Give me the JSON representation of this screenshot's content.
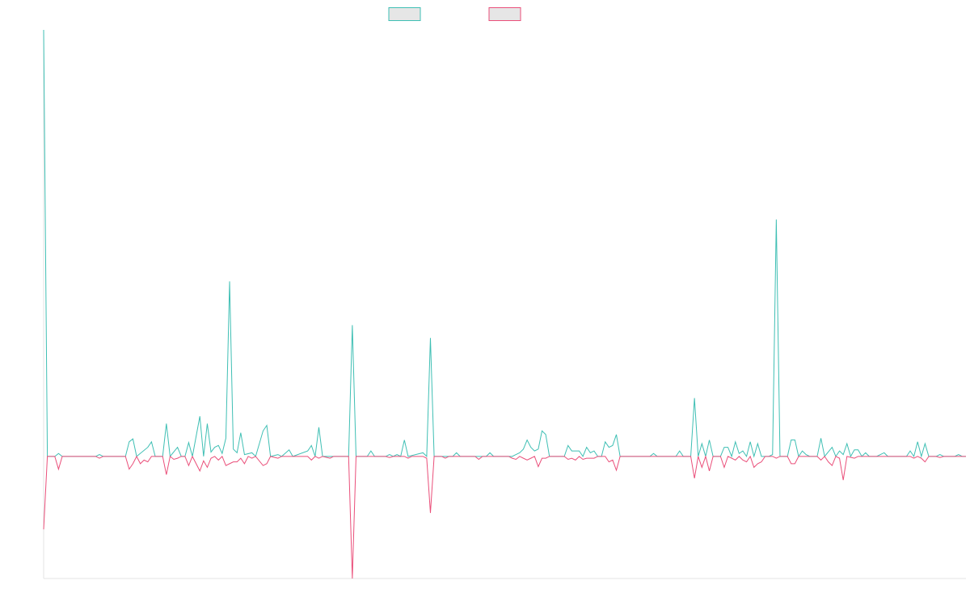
{
  "chart_data": {
    "type": "line",
    "title": "",
    "xlabel": "",
    "ylabel": "",
    "grid": false,
    "legend": {
      "placement": "top-center",
      "entries": [
        {
          "label": "",
          "color": "#3fbfb4",
          "fill": "#e6e6e6"
        },
        {
          "label": "",
          "color": "#ea4f7a",
          "fill": "#e6e6e6"
        }
      ]
    },
    "ylim": [
      -33.5,
      117
    ],
    "xlim": [
      0,
      248
    ],
    "series": [
      {
        "name": "",
        "color": "#3fbfb4",
        "points": [
          [
            0,
            117
          ],
          [
            1,
            0
          ],
          [
            3,
            0
          ],
          [
            4,
            0.8
          ],
          [
            5,
            0
          ],
          [
            14,
            0
          ],
          [
            15,
            0.5
          ],
          [
            16,
            0
          ],
          [
            22,
            0
          ],
          [
            23,
            4
          ],
          [
            24,
            4.8
          ],
          [
            25,
            0
          ],
          [
            28,
            2.5
          ],
          [
            29,
            4
          ],
          [
            30,
            0
          ],
          [
            32,
            0
          ],
          [
            33,
            9
          ],
          [
            34,
            0
          ],
          [
            36,
            2.5
          ],
          [
            37,
            0
          ],
          [
            38,
            0
          ],
          [
            39,
            3.8
          ],
          [
            40,
            0
          ],
          [
            42,
            11
          ],
          [
            43,
            0
          ],
          [
            44,
            9
          ],
          [
            45,
            1.2
          ],
          [
            46,
            2.5
          ],
          [
            47,
            3
          ],
          [
            48,
            0.8
          ],
          [
            49,
            5
          ],
          [
            50,
            48
          ],
          [
            51,
            2
          ],
          [
            52,
            1
          ],
          [
            53,
            6.5
          ],
          [
            54,
            0.5
          ],
          [
            56,
            1
          ],
          [
            57,
            0
          ],
          [
            59,
            7
          ],
          [
            60,
            8.5
          ],
          [
            61,
            0
          ],
          [
            63,
            0.5
          ],
          [
            64,
            0
          ],
          [
            66,
            1.8
          ],
          [
            67,
            0
          ],
          [
            71,
            1.5
          ],
          [
            72,
            3
          ],
          [
            73,
            0
          ],
          [
            74,
            8
          ],
          [
            75,
            0
          ],
          [
            82,
            0
          ],
          [
            83,
            36
          ],
          [
            84,
            0
          ],
          [
            87,
            0
          ],
          [
            88,
            1.5
          ],
          [
            89,
            0
          ],
          [
            92,
            0
          ],
          [
            93,
            0.5
          ],
          [
            94,
            0
          ],
          [
            95,
            0.5
          ],
          [
            96,
            0
          ],
          [
            97,
            4.5
          ],
          [
            98,
            0
          ],
          [
            102,
            1
          ],
          [
            103,
            0
          ],
          [
            104,
            32.5
          ],
          [
            105,
            0
          ],
          [
            110,
            0
          ],
          [
            111,
            1
          ],
          [
            112,
            0
          ],
          [
            119,
            0
          ],
          [
            120,
            1
          ],
          [
            121,
            0
          ],
          [
            126,
            0
          ],
          [
            127,
            0.5
          ],
          [
            128,
            1
          ],
          [
            129,
            2
          ],
          [
            130,
            4.5
          ],
          [
            131,
            2.5
          ],
          [
            132,
            1.5
          ],
          [
            133,
            2
          ],
          [
            134,
            7
          ],
          [
            135,
            6
          ],
          [
            136,
            0
          ],
          [
            140,
            0
          ],
          [
            141,
            3
          ],
          [
            142,
            1.5
          ],
          [
            143,
            1.5
          ],
          [
            144,
            1.5
          ],
          [
            145,
            0
          ],
          [
            146,
            2.5
          ],
          [
            147,
            1
          ],
          [
            148,
            1.5
          ],
          [
            149,
            0
          ],
          [
            150,
            0
          ],
          [
            151,
            4
          ],
          [
            152,
            2.5
          ],
          [
            153,
            3
          ],
          [
            154,
            6
          ],
          [
            155,
            0
          ],
          [
            163,
            0
          ],
          [
            164,
            0.8
          ],
          [
            165,
            0
          ],
          [
            170,
            0
          ],
          [
            171,
            1.5
          ],
          [
            172,
            0
          ],
          [
            174,
            0
          ],
          [
            175,
            16
          ],
          [
            176,
            0
          ],
          [
            177,
            3.5
          ],
          [
            178,
            0
          ],
          [
            179,
            4.5
          ],
          [
            180,
            0
          ],
          [
            182,
            0
          ],
          [
            183,
            2.5
          ],
          [
            184,
            2.5
          ],
          [
            185,
            0
          ],
          [
            186,
            4
          ],
          [
            187,
            0.8
          ],
          [
            188,
            1.5
          ],
          [
            189,
            0
          ],
          [
            190,
            4
          ],
          [
            191,
            0
          ],
          [
            192,
            3.5
          ],
          [
            193,
            0
          ],
          [
            195,
            0
          ],
          [
            196,
            0.5
          ],
          [
            197,
            65
          ],
          [
            198,
            0
          ],
          [
            200,
            0
          ],
          [
            201,
            4.5
          ],
          [
            202,
            4.5
          ],
          [
            203,
            0
          ],
          [
            204,
            1.5
          ],
          [
            205,
            0.5
          ],
          [
            206,
            0
          ],
          [
            208,
            0
          ],
          [
            209,
            5
          ],
          [
            210,
            0
          ],
          [
            212,
            2.5
          ],
          [
            213,
            0
          ],
          [
            214,
            1.5
          ],
          [
            215,
            0.5
          ],
          [
            216,
            3.5
          ],
          [
            217,
            0
          ],
          [
            218,
            1.8
          ],
          [
            219,
            1.8
          ],
          [
            220,
            0
          ],
          [
            221,
            1
          ],
          [
            222,
            0
          ],
          [
            224,
            0
          ],
          [
            225,
            0.5
          ],
          [
            226,
            1
          ],
          [
            227,
            0
          ],
          [
            232,
            0
          ],
          [
            233,
            1.5
          ],
          [
            234,
            0
          ],
          [
            235,
            4
          ],
          [
            236,
            0
          ],
          [
            237,
            3.5
          ],
          [
            238,
            0
          ],
          [
            240,
            0
          ],
          [
            241,
            0.5
          ],
          [
            242,
            0
          ],
          [
            245,
            0
          ],
          [
            246,
            0.5
          ],
          [
            247,
            0
          ],
          [
            248,
            0
          ]
        ]
      },
      {
        "name": "",
        "color": "#ea4f7a",
        "points": [
          [
            0,
            -20
          ],
          [
            1,
            0
          ],
          [
            3,
            0
          ],
          [
            4,
            -3.5
          ],
          [
            5,
            0
          ],
          [
            14,
            0
          ],
          [
            15,
            -0.5
          ],
          [
            16,
            0
          ],
          [
            22,
            0
          ],
          [
            23,
            -3.5
          ],
          [
            24,
            -2
          ],
          [
            25,
            0
          ],
          [
            26,
            -2
          ],
          [
            27,
            -1
          ],
          [
            28,
            -1.5
          ],
          [
            29,
            0
          ],
          [
            32,
            0
          ],
          [
            33,
            -5
          ],
          [
            34,
            0
          ],
          [
            35,
            -0.8
          ],
          [
            36,
            -0.5
          ],
          [
            37,
            0
          ],
          [
            38,
            0
          ],
          [
            39,
            -2.5
          ],
          [
            40,
            0
          ],
          [
            42,
            -4
          ],
          [
            43,
            -1.2
          ],
          [
            44,
            -3
          ],
          [
            45,
            -0.5
          ],
          [
            46,
            0
          ],
          [
            47,
            -1
          ],
          [
            48,
            0
          ],
          [
            49,
            -2.5
          ],
          [
            50,
            -2
          ],
          [
            51,
            -1.5
          ],
          [
            52,
            -1.5
          ],
          [
            53,
            -0.5
          ],
          [
            54,
            -2
          ],
          [
            55,
            0
          ],
          [
            56,
            -0.5
          ],
          [
            57,
            0
          ],
          [
            59,
            -2.5
          ],
          [
            60,
            -2
          ],
          [
            61,
            0
          ],
          [
            63,
            -0.5
          ],
          [
            64,
            0
          ],
          [
            71,
            0
          ],
          [
            72,
            -1
          ],
          [
            73,
            0
          ],
          [
            74,
            -0.5
          ],
          [
            75,
            0
          ],
          [
            77,
            -0.5
          ],
          [
            78,
            0
          ],
          [
            82,
            0
          ],
          [
            83,
            -33.5
          ],
          [
            84,
            0
          ],
          [
            92,
            0
          ],
          [
            93,
            -0.3
          ],
          [
            94,
            0
          ],
          [
            97,
            0
          ],
          [
            98,
            -0.5
          ],
          [
            99,
            0
          ],
          [
            102,
            0
          ],
          [
            103,
            -0.5
          ],
          [
            104,
            -15.5
          ],
          [
            105,
            0
          ],
          [
            107,
            0
          ],
          [
            108,
            -0.5
          ],
          [
            109,
            0
          ],
          [
            116,
            0
          ],
          [
            117,
            -0.8
          ],
          [
            118,
            0
          ],
          [
            125,
            0
          ],
          [
            126,
            -0.5
          ],
          [
            127,
            -0.8
          ],
          [
            128,
            0
          ],
          [
            129,
            -0.5
          ],
          [
            130,
            -1
          ],
          [
            131,
            -0.5
          ],
          [
            132,
            0
          ],
          [
            133,
            -2.8
          ],
          [
            134,
            -0.5
          ],
          [
            135,
            -0.5
          ],
          [
            136,
            0
          ],
          [
            140,
            0
          ],
          [
            141,
            -0.8
          ],
          [
            142,
            -0.5
          ],
          [
            143,
            -1
          ],
          [
            144,
            0
          ],
          [
            145,
            -0.8
          ],
          [
            146,
            -0.5
          ],
          [
            147,
            -0.5
          ],
          [
            148,
            -0.5
          ],
          [
            149,
            0
          ],
          [
            151,
            0
          ],
          [
            152,
            -1.5
          ],
          [
            153,
            -1
          ],
          [
            154,
            -3.8
          ],
          [
            155,
            0
          ],
          [
            174,
            0
          ],
          [
            175,
            -6
          ],
          [
            176,
            0
          ],
          [
            177,
            -3
          ],
          [
            178,
            0
          ],
          [
            179,
            -4
          ],
          [
            180,
            0
          ],
          [
            182,
            0
          ],
          [
            183,
            -3
          ],
          [
            184,
            0
          ],
          [
            186,
            -1
          ],
          [
            187,
            0
          ],
          [
            188,
            -1
          ],
          [
            189,
            -1.5
          ],
          [
            190,
            0
          ],
          [
            191,
            -3
          ],
          [
            192,
            -2
          ],
          [
            193,
            -1.5
          ],
          [
            194,
            0
          ],
          [
            196,
            0
          ],
          [
            197,
            -0.5
          ],
          [
            198,
            0
          ],
          [
            200,
            0
          ],
          [
            201,
            -2
          ],
          [
            202,
            -2
          ],
          [
            203,
            0
          ],
          [
            208,
            0
          ],
          [
            209,
            -1
          ],
          [
            210,
            0
          ],
          [
            211,
            -1.5
          ],
          [
            212,
            -2.5
          ],
          [
            213,
            0
          ],
          [
            214,
            -0.5
          ],
          [
            215,
            -6.5
          ],
          [
            216,
            0
          ],
          [
            218,
            -0.5
          ],
          [
            219,
            0
          ],
          [
            233,
            0
          ],
          [
            234,
            -0.5
          ],
          [
            235,
            0
          ],
          [
            236,
            -0.5
          ],
          [
            237,
            -1.5
          ],
          [
            238,
            0
          ],
          [
            240,
            0
          ],
          [
            241,
            -0.3
          ],
          [
            242,
            0
          ],
          [
            248,
            0
          ]
        ]
      }
    ]
  }
}
